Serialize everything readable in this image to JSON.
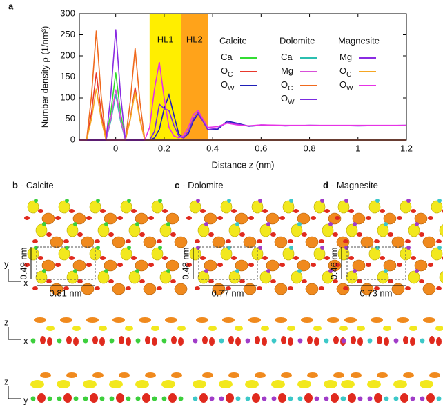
{
  "chart_data": {
    "type": "line",
    "panel": "a",
    "ylabel": "Number density ρ (1/nm³)",
    "xlabel": "Distance z (nm)",
    "xlim": [
      -0.15,
      1.2
    ],
    "xticks": [
      0,
      0.2,
      0.4,
      0.6,
      0.8,
      1,
      1.2
    ],
    "ylim": [
      0,
      300
    ],
    "yticks": [
      0,
      50,
      100,
      150,
      200,
      250,
      300
    ],
    "regions": [
      {
        "label": "HL1",
        "start": 0.14,
        "end": 0.27,
        "color": "#ffee00"
      },
      {
        "label": "HL2",
        "start": 0.27,
        "end": 0.38,
        "color": "#ffa31a"
      }
    ],
    "legend_groups": [
      "Calcite",
      "Dolomite",
      "Magnesite"
    ],
    "x": [
      -0.15,
      -0.12,
      -0.1,
      -0.08,
      -0.06,
      -0.04,
      -0.02,
      0,
      0.02,
      0.04,
      0.06,
      0.08,
      0.1,
      0.12,
      0.14,
      0.16,
      0.18,
      0.2,
      0.22,
      0.24,
      0.26,
      0.28,
      0.3,
      0.32,
      0.34,
      0.36,
      0.38,
      0.42,
      0.46,
      0.5,
      0.55,
      0.6,
      0.7,
      0.8,
      1.0,
      1.2
    ],
    "series": [
      {
        "group": 0,
        "name": "Ca",
        "color": "#33dd33",
        "values": [
          0,
          0,
          0,
          0,
          0,
          0,
          65,
          160,
          65,
          0,
          0,
          0,
          0,
          0,
          0,
          0,
          0,
          0,
          0,
          0,
          0,
          0,
          0,
          0,
          0,
          0,
          0,
          0,
          0,
          0,
          0,
          0,
          0,
          0,
          0,
          0
        ]
      },
      {
        "group": 0,
        "name": "O",
        "sub": "C",
        "color": "#e8382c",
        "values": [
          0,
          0,
          65,
          160,
          65,
          0,
          0,
          0,
          0,
          0,
          50,
          125,
          50,
          0,
          0,
          0,
          0,
          0,
          0,
          0,
          0,
          0,
          0,
          0,
          0,
          0,
          0,
          0,
          0,
          0,
          0,
          0,
          0,
          0,
          0,
          0
        ]
      },
      {
        "group": 0,
        "name": "O",
        "sub": "W",
        "color": "#1f1fb8",
        "values": [
          0,
          0,
          0,
          0,
          0,
          0,
          0,
          0,
          0,
          0,
          0,
          0,
          0,
          0,
          0,
          5,
          25,
          75,
          107,
          60,
          15,
          5,
          15,
          45,
          62,
          45,
          25,
          25,
          45,
          40,
          33,
          35,
          34,
          35,
          34,
          35
        ]
      },
      {
        "group": 1,
        "name": "Ca",
        "color": "#2bbfb0",
        "values": [
          0,
          0,
          0,
          0,
          0,
          0,
          45,
          108,
          45,
          0,
          0,
          0,
          0,
          0,
          0,
          0,
          0,
          0,
          0,
          0,
          0,
          0,
          0,
          0,
          0,
          0,
          0,
          0,
          0,
          0,
          0,
          0,
          0,
          0,
          0,
          0
        ]
      },
      {
        "group": 1,
        "name": "Mg",
        "color": "#d84fd8",
        "values": [
          0,
          0,
          0,
          0,
          0,
          0,
          50,
          120,
          50,
          0,
          0,
          0,
          0,
          0,
          0,
          0,
          0,
          0,
          0,
          0,
          0,
          0,
          0,
          0,
          0,
          0,
          0,
          0,
          0,
          0,
          0,
          0,
          0,
          0,
          0,
          0
        ]
      },
      {
        "group": 1,
        "name": "O",
        "sub": "C",
        "color": "#f06a1e",
        "values": [
          0,
          0,
          105,
          260,
          105,
          0,
          0,
          0,
          0,
          0,
          90,
          218,
          90,
          0,
          0,
          0,
          0,
          0,
          0,
          0,
          0,
          0,
          0,
          0,
          0,
          0,
          0,
          0,
          0,
          0,
          0,
          0,
          0,
          0,
          0,
          0
        ]
      },
      {
        "group": 1,
        "name": "O",
        "sub": "W",
        "color": "#7a2be0",
        "values": [
          0,
          0,
          0,
          0,
          0,
          0,
          0,
          0,
          0,
          0,
          0,
          0,
          0,
          0,
          0,
          20,
          85,
          75,
          70,
          35,
          10,
          5,
          20,
          50,
          65,
          45,
          25,
          28,
          42,
          38,
          33,
          36,
          34,
          35,
          34,
          35
        ]
      },
      {
        "group": 2,
        "name": "Mg",
        "color": "#8a2be2",
        "values": [
          0,
          0,
          0,
          0,
          0,
          0,
          108,
          263,
          108,
          0,
          0,
          0,
          0,
          0,
          0,
          0,
          0,
          0,
          0,
          0,
          0,
          0,
          0,
          0,
          0,
          0,
          0,
          0,
          0,
          0,
          0,
          0,
          0,
          0,
          0,
          0
        ]
      },
      {
        "group": 2,
        "name": "O",
        "sub": "C",
        "color": "#f5a623",
        "values": [
          0,
          0,
          50,
          122,
          50,
          0,
          0,
          0,
          0,
          0,
          47,
          115,
          47,
          0,
          0,
          0,
          0,
          0,
          0,
          0,
          0,
          0,
          0,
          0,
          0,
          0,
          0,
          0,
          0,
          0,
          0,
          0,
          0,
          0,
          0,
          0
        ]
      },
      {
        "group": 2,
        "name": "O",
        "sub": "W",
        "color": "#e632e6",
        "values": [
          0,
          0,
          0,
          0,
          0,
          0,
          0,
          0,
          0,
          0,
          0,
          0,
          0,
          0,
          30,
          120,
          185,
          100,
          30,
          10,
          5,
          10,
          30,
          60,
          70,
          50,
          30,
          32,
          40,
          36,
          34,
          36,
          35,
          35,
          35,
          35
        ]
      }
    ]
  },
  "panels": [
    {
      "letter": "b",
      "title": "- Calcite",
      "height_label": "0.49 nm",
      "width_label": "0.81 nm"
    },
    {
      "letter": "c",
      "title": "- Dolomite",
      "height_label": "0.48 nm",
      "width_label": "0.77 nm"
    },
    {
      "letter": "d",
      "title": "- Magnesite",
      "height_label": "0.46 nm",
      "width_label": "0.73 nm"
    }
  ],
  "axis_icons": [
    [
      "y",
      "x"
    ],
    [
      "z",
      "x"
    ],
    [
      "z",
      "y"
    ]
  ]
}
